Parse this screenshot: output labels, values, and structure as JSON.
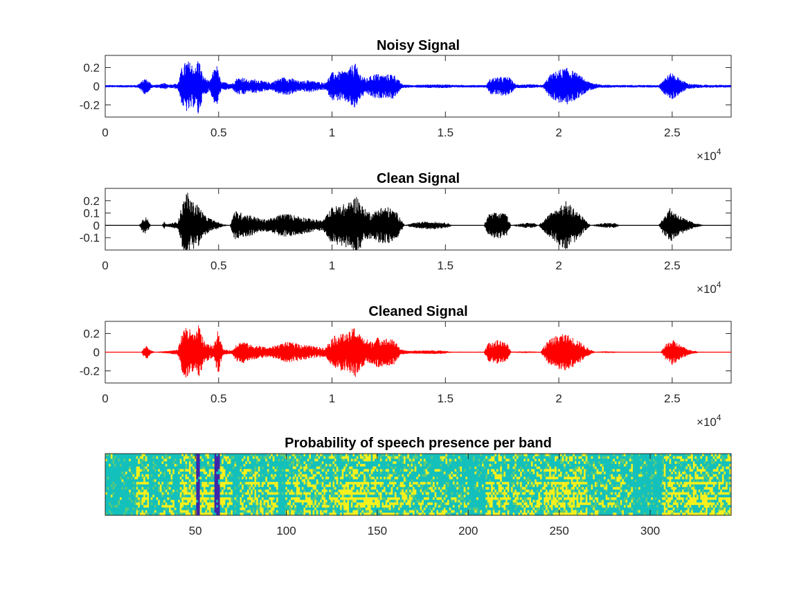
{
  "chart_data": [
    {
      "type": "line",
      "title": "Noisy Signal",
      "xlabel": "",
      "ylabel": "",
      "xlim": [
        0,
        27600
      ],
      "ylim": [
        -0.33,
        0.33
      ],
      "x_ticks": [
        0,
        5000,
        10000,
        15000,
        20000,
        25000
      ],
      "x_tick_labels": [
        "0",
        "0.5",
        "1",
        "1.5",
        "2",
        "2.5"
      ],
      "y_ticks": [
        0.2,
        0,
        -0.2
      ],
      "y_tick_labels": [
        "0.2",
        "0",
        "-0.2"
      ],
      "exponent_base": "10",
      "exponent_power": "4",
      "color": "#0000ff",
      "noise_floor": 0.012,
      "envelope": [
        [
          0,
          0.012
        ],
        [
          1400,
          0.014
        ],
        [
          1600,
          0.05
        ],
        [
          1750,
          0.09
        ],
        [
          1900,
          0.06
        ],
        [
          2100,
          0.014
        ],
        [
          2400,
          0.02
        ],
        [
          2600,
          0.035
        ],
        [
          2800,
          0.02
        ],
        [
          3200,
          0.03
        ],
        [
          3400,
          0.22
        ],
        [
          3600,
          0.28
        ],
        [
          3800,
          0.25
        ],
        [
          4000,
          0.2
        ],
        [
          4100,
          0.33
        ],
        [
          4300,
          0.12
        ],
        [
          4600,
          0.05
        ],
        [
          4900,
          0.25
        ],
        [
          5100,
          0.05
        ],
        [
          5600,
          0.03
        ],
        [
          5800,
          0.09
        ],
        [
          6100,
          0.1
        ],
        [
          6300,
          0.06
        ],
        [
          6600,
          0.08
        ],
        [
          6900,
          0.06
        ],
        [
          7300,
          0.04
        ],
        [
          7600,
          0.08
        ],
        [
          7900,
          0.1
        ],
        [
          8200,
          0.09
        ],
        [
          8600,
          0.05
        ],
        [
          9000,
          0.07
        ],
        [
          9300,
          0.05
        ],
        [
          9700,
          0.04
        ],
        [
          10000,
          0.15
        ],
        [
          10400,
          0.16
        ],
        [
          10700,
          0.18
        ],
        [
          11000,
          0.26
        ],
        [
          11200,
          0.15
        ],
        [
          11500,
          0.08
        ],
        [
          11900,
          0.14
        ],
        [
          12300,
          0.12
        ],
        [
          12700,
          0.14
        ],
        [
          12900,
          0.08
        ],
        [
          13100,
          0.02
        ],
        [
          13600,
          0.014
        ],
        [
          14400,
          0.02
        ],
        [
          15000,
          0.02
        ],
        [
          15600,
          0.014
        ],
        [
          16800,
          0.014
        ],
        [
          17000,
          0.09
        ],
        [
          17400,
          0.1
        ],
        [
          17800,
          0.1
        ],
        [
          18100,
          0.02
        ],
        [
          18800,
          0.02
        ],
        [
          19300,
          0.014
        ],
        [
          19600,
          0.12
        ],
        [
          20000,
          0.18
        ],
        [
          20400,
          0.2
        ],
        [
          20800,
          0.14
        ],
        [
          21300,
          0.05
        ],
        [
          21800,
          0.02
        ],
        [
          22400,
          0.014
        ],
        [
          24400,
          0.014
        ],
        [
          24700,
          0.1
        ],
        [
          25000,
          0.15
        ],
        [
          25300,
          0.09
        ],
        [
          25700,
          0.03
        ],
        [
          26300,
          0.016
        ],
        [
          27600,
          0.014
        ]
      ]
    },
    {
      "type": "line",
      "title": "Clean Signal",
      "xlabel": "",
      "ylabel": "",
      "xlim": [
        0,
        27600
      ],
      "ylim": [
        -0.2,
        0.3
      ],
      "x_ticks": [
        0,
        5000,
        10000,
        15000,
        20000,
        25000
      ],
      "x_tick_labels": [
        "0",
        "0.5",
        "1",
        "1.5",
        "2",
        "2.5"
      ],
      "y_ticks": [
        0.2,
        0.1,
        0,
        -0.1
      ],
      "y_tick_labels": [
        "0.2",
        "0.1",
        "0",
        "-0.1"
      ],
      "exponent_base": "10",
      "exponent_power": "4",
      "color": "#000000",
      "noise_floor": 0.0012,
      "envelope": [
        [
          0,
          0.001
        ],
        [
          1500,
          0.001
        ],
        [
          1600,
          0.04
        ],
        [
          1750,
          0.08
        ],
        [
          1900,
          0.04
        ],
        [
          2000,
          0.001
        ],
        [
          2500,
          0.001
        ],
        [
          2600,
          0.03
        ],
        [
          2700,
          0.01
        ],
        [
          3200,
          0.03
        ],
        [
          3400,
          0.18
        ],
        [
          3600,
          0.28
        ],
        [
          3800,
          0.2
        ],
        [
          4100,
          0.17
        ],
        [
          4400,
          0.08
        ],
        [
          4800,
          0.04
        ],
        [
          5200,
          0.01
        ],
        [
          5500,
          0.001
        ],
        [
          5700,
          0.12
        ],
        [
          6100,
          0.1
        ],
        [
          6500,
          0.08
        ],
        [
          6900,
          0.05
        ],
        [
          7400,
          0.06
        ],
        [
          7800,
          0.1
        ],
        [
          8200,
          0.09
        ],
        [
          8700,
          0.07
        ],
        [
          9200,
          0.05
        ],
        [
          9600,
          0.04
        ],
        [
          10000,
          0.15
        ],
        [
          10400,
          0.17
        ],
        [
          10700,
          0.18
        ],
        [
          11100,
          0.25
        ],
        [
          11400,
          0.14
        ],
        [
          11800,
          0.1
        ],
        [
          12100,
          0.15
        ],
        [
          12500,
          0.15
        ],
        [
          12900,
          0.1
        ],
        [
          13200,
          0.002
        ],
        [
          13600,
          0.02
        ],
        [
          14000,
          0.03
        ],
        [
          14500,
          0.03
        ],
        [
          15100,
          0.02
        ],
        [
          15300,
          0.001
        ],
        [
          16700,
          0.001
        ],
        [
          16900,
          0.09
        ],
        [
          17300,
          0.11
        ],
        [
          17700,
          0.09
        ],
        [
          17900,
          0.001
        ],
        [
          18500,
          0.02
        ],
        [
          18900,
          0.02
        ],
        [
          19100,
          0.001
        ],
        [
          19500,
          0.08
        ],
        [
          19900,
          0.14
        ],
        [
          20300,
          0.2
        ],
        [
          20700,
          0.14
        ],
        [
          21200,
          0.04
        ],
        [
          21400,
          0.001
        ],
        [
          22000,
          0.02
        ],
        [
          22500,
          0.02
        ],
        [
          22700,
          0.001
        ],
        [
          24400,
          0.001
        ],
        [
          24600,
          0.07
        ],
        [
          24900,
          0.14
        ],
        [
          25200,
          0.1
        ],
        [
          25600,
          0.05
        ],
        [
          26000,
          0.02
        ],
        [
          26400,
          0.002
        ],
        [
          27600,
          0.001
        ]
      ]
    },
    {
      "type": "line",
      "title": "Cleaned Signal",
      "xlabel": "",
      "ylabel": "",
      "xlim": [
        0,
        27600
      ],
      "ylim": [
        -0.33,
        0.33
      ],
      "x_ticks": [
        0,
        5000,
        10000,
        15000,
        20000,
        25000
      ],
      "x_tick_labels": [
        "0",
        "0.5",
        "1",
        "1.5",
        "2",
        "2.5"
      ],
      "y_ticks": [
        0.2,
        0,
        -0.2
      ],
      "y_tick_labels": [
        "0.2",
        "0",
        "-0.2"
      ],
      "exponent_base": "10",
      "exponent_power": "4",
      "color": "#ff0000",
      "noise_floor": 0.002,
      "envelope": [
        [
          0,
          0.002
        ],
        [
          1600,
          0.002
        ],
        [
          1700,
          0.05
        ],
        [
          1850,
          0.07
        ],
        [
          2000,
          0.02
        ],
        [
          2200,
          0.002
        ],
        [
          2500,
          0.01
        ],
        [
          2800,
          0.015
        ],
        [
          3200,
          0.03
        ],
        [
          3400,
          0.22
        ],
        [
          3600,
          0.3
        ],
        [
          3800,
          0.22
        ],
        [
          4000,
          0.18
        ],
        [
          4100,
          0.31
        ],
        [
          4400,
          0.1
        ],
        [
          4800,
          0.07
        ],
        [
          4950,
          0.27
        ],
        [
          5200,
          0.03
        ],
        [
          5600,
          0.02
        ],
        [
          5800,
          0.1
        ],
        [
          6100,
          0.12
        ],
        [
          6400,
          0.08
        ],
        [
          6800,
          0.07
        ],
        [
          7200,
          0.05
        ],
        [
          7600,
          0.08
        ],
        [
          8000,
          0.11
        ],
        [
          8400,
          0.1
        ],
        [
          8800,
          0.08
        ],
        [
          9300,
          0.06
        ],
        [
          9700,
          0.05
        ],
        [
          10000,
          0.16
        ],
        [
          10300,
          0.2
        ],
        [
          10700,
          0.2
        ],
        [
          11000,
          0.28
        ],
        [
          11300,
          0.17
        ],
        [
          11700,
          0.12
        ],
        [
          12000,
          0.16
        ],
        [
          12400,
          0.15
        ],
        [
          12800,
          0.13
        ],
        [
          13000,
          0.03
        ],
        [
          13400,
          0.015
        ],
        [
          14000,
          0.02
        ],
        [
          14800,
          0.02
        ],
        [
          15300,
          0.005
        ],
        [
          16700,
          0.005
        ],
        [
          16900,
          0.1
        ],
        [
          17300,
          0.13
        ],
        [
          17700,
          0.1
        ],
        [
          17900,
          0.005
        ],
        [
          18500,
          0.01
        ],
        [
          19200,
          0.005
        ],
        [
          19500,
          0.12
        ],
        [
          19900,
          0.18
        ],
        [
          20300,
          0.2
        ],
        [
          20800,
          0.14
        ],
        [
          21300,
          0.04
        ],
        [
          21600,
          0.005
        ],
        [
          22100,
          0.01
        ],
        [
          22700,
          0.005
        ],
        [
          24500,
          0.005
        ],
        [
          24700,
          0.08
        ],
        [
          25000,
          0.14
        ],
        [
          25300,
          0.09
        ],
        [
          25700,
          0.03
        ],
        [
          26200,
          0.005
        ],
        [
          27600,
          0.003
        ]
      ]
    },
    {
      "type": "heatmap",
      "title": "Probability of speech presence per band",
      "xlabel": "",
      "ylabel": "",
      "xlim": [
        1,
        344
      ],
      "x_ticks": [
        50,
        100,
        150,
        200,
        250,
        300
      ],
      "x_tick_labels": [
        "50",
        "100",
        "150",
        "200",
        "250",
        "300"
      ],
      "bands": 24,
      "colors": {
        "low": "#3e26a8",
        "mid": "#1ab8b0",
        "high": "#f5f01d",
        "teal": "#14c0bb",
        "green": "#5fcb76"
      },
      "speech_regions": [
        [
          18,
          24,
          0.7
        ],
        [
          30,
          38,
          0.4
        ],
        [
          42,
          70,
          0.85
        ],
        [
          75,
          95,
          0.6
        ],
        [
          100,
          130,
          0.55
        ],
        [
          130,
          150,
          0.8
        ],
        [
          150,
          170,
          0.65
        ],
        [
          170,
          200,
          0.35
        ],
        [
          210,
          222,
          0.75
        ],
        [
          225,
          240,
          0.5
        ],
        [
          242,
          265,
          0.85
        ],
        [
          268,
          290,
          0.4
        ],
        [
          307,
          344,
          0.75
        ]
      ],
      "dark_columns": [
        51,
        52,
        61,
        62,
        63
      ]
    }
  ]
}
